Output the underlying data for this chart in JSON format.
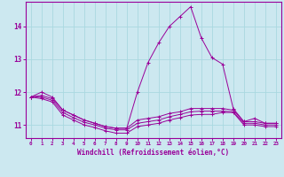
{
  "xlabel": "Windchill (Refroidissement éolien,°C)",
  "background_color": "#cce8f0",
  "grid_color": "#aad8e0",
  "line_color": "#990099",
  "xlim": [
    -0.5,
    23.5
  ],
  "ylim": [
    10.6,
    14.75
  ],
  "yticks": [
    11,
    12,
    13,
    14
  ],
  "xticks": [
    0,
    1,
    2,
    3,
    4,
    5,
    6,
    7,
    8,
    9,
    10,
    11,
    12,
    13,
    14,
    15,
    16,
    17,
    18,
    19,
    20,
    21,
    22,
    23
  ],
  "series": [
    [
      11.85,
      12.0,
      11.85,
      11.45,
      11.3,
      11.15,
      11.05,
      10.95,
      10.9,
      10.9,
      12.0,
      12.9,
      13.5,
      14.0,
      14.3,
      14.6,
      13.65,
      13.05,
      12.85,
      11.5,
      11.1,
      11.2,
      11.05,
      11.05
    ],
    [
      11.85,
      11.9,
      11.8,
      11.45,
      11.3,
      11.15,
      11.05,
      10.95,
      10.9,
      10.9,
      11.15,
      11.2,
      11.25,
      11.35,
      11.4,
      11.5,
      11.5,
      11.5,
      11.5,
      11.45,
      11.1,
      11.1,
      11.05,
      11.05
    ],
    [
      11.85,
      11.85,
      11.75,
      11.38,
      11.22,
      11.08,
      11.0,
      10.9,
      10.85,
      10.85,
      11.05,
      11.1,
      11.15,
      11.25,
      11.32,
      11.4,
      11.42,
      11.42,
      11.42,
      11.4,
      11.05,
      11.05,
      11.0,
      11.0
    ],
    [
      11.85,
      11.8,
      11.7,
      11.3,
      11.15,
      11.0,
      10.92,
      10.82,
      10.75,
      10.75,
      10.95,
      11.0,
      11.05,
      11.15,
      11.22,
      11.3,
      11.32,
      11.32,
      11.38,
      11.38,
      11.0,
      11.0,
      10.95,
      10.95
    ]
  ]
}
